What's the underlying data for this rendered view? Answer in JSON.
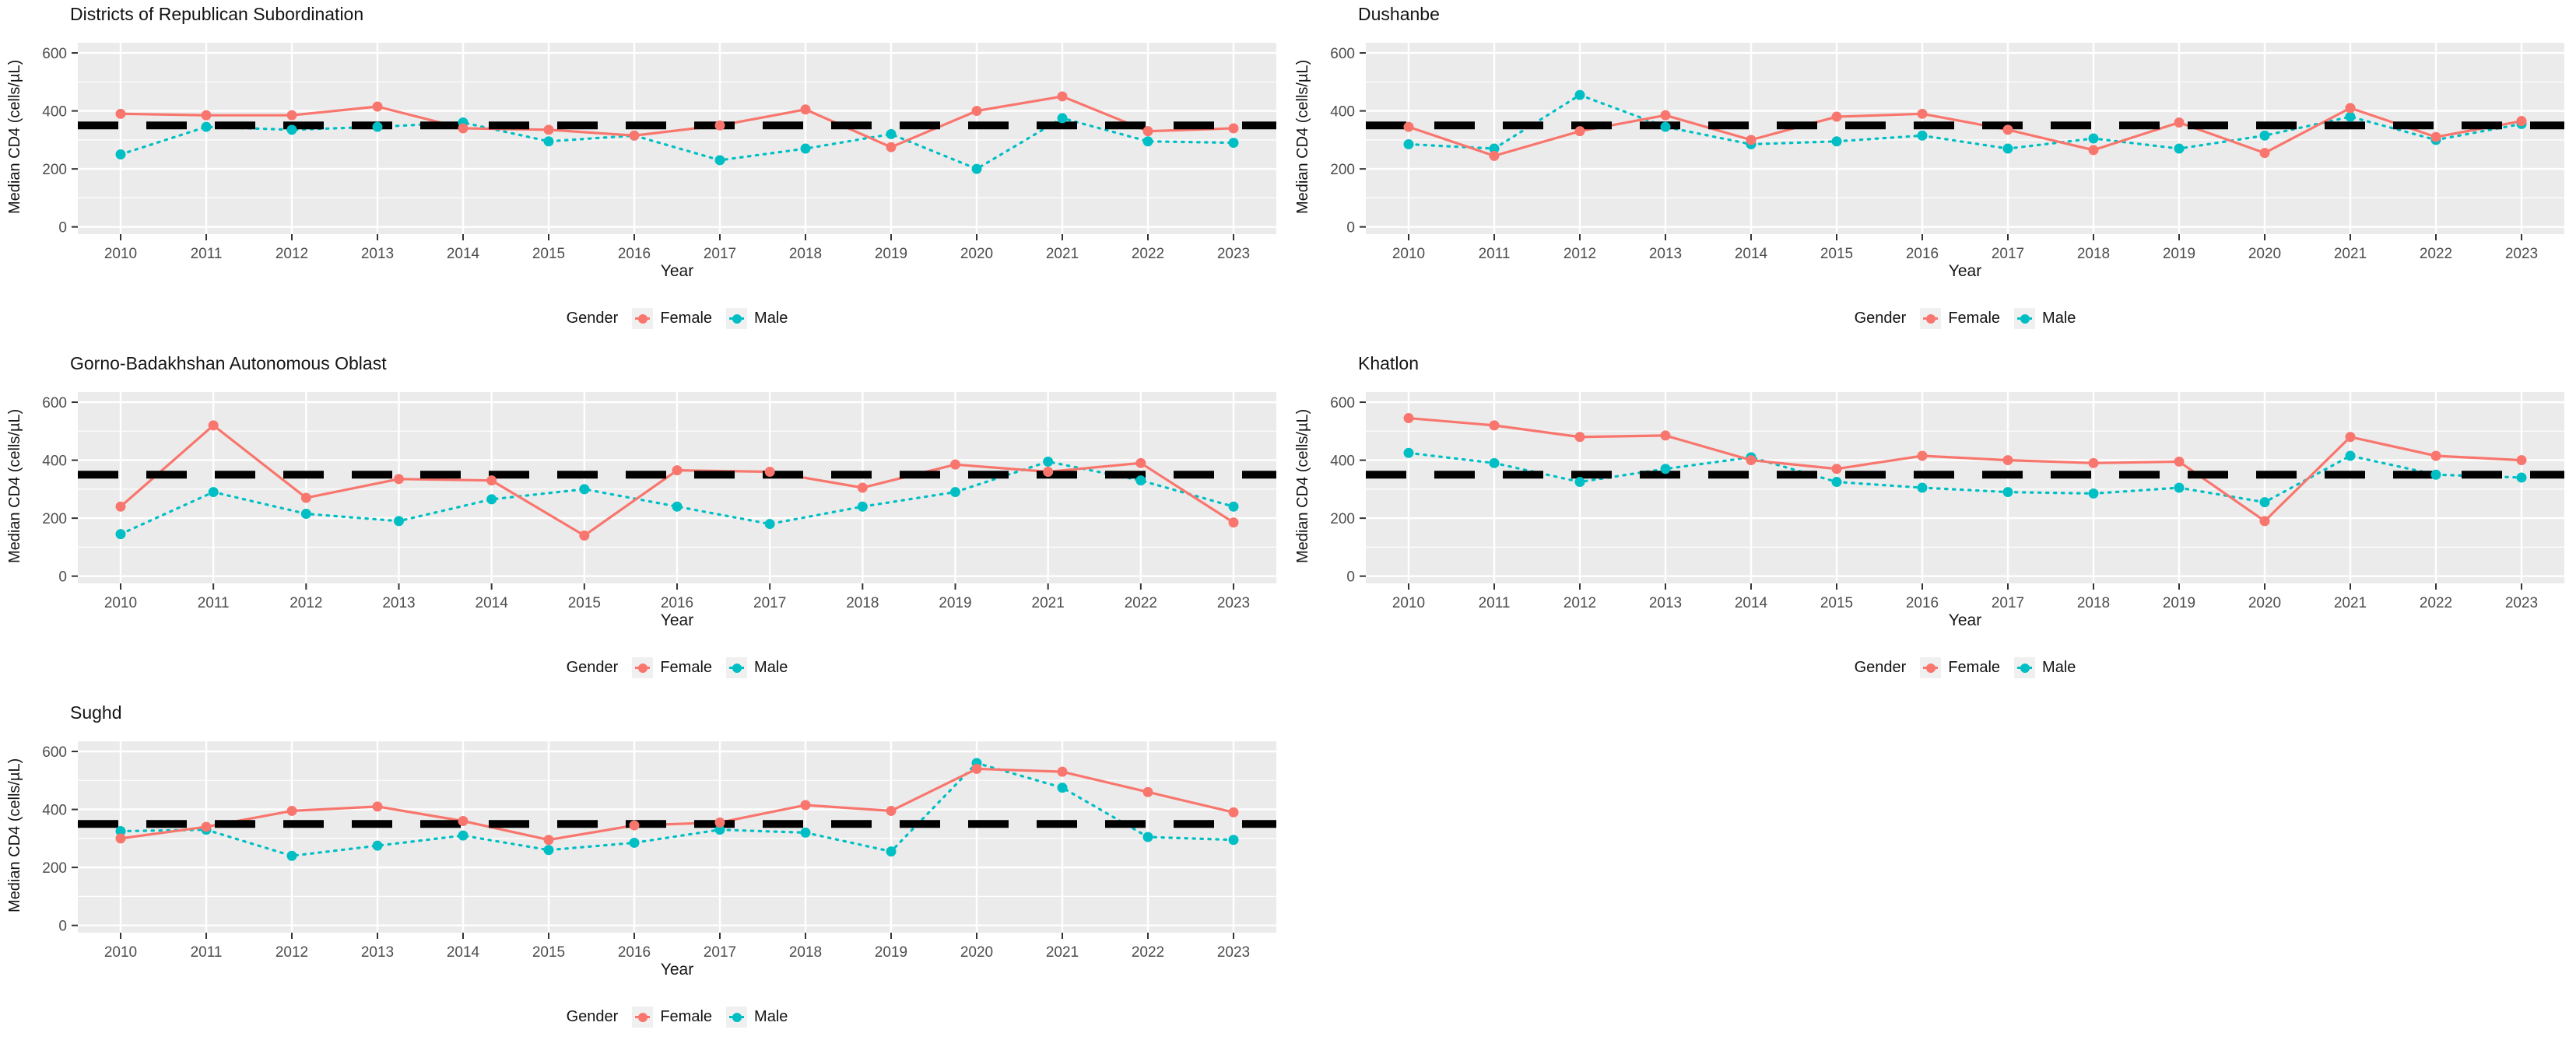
{
  "page": {
    "background": "#ffffff"
  },
  "colors": {
    "female": "#F8766D",
    "male": "#00BFC4",
    "panel_bg": "#EBEBEB",
    "grid": "#FFFFFF",
    "ref_line": "#000000",
    "tick_text": "#4D4D4D",
    "title_text": "#141414",
    "legend_key_bg": "#F0F0F0"
  },
  "axes": {
    "y_label": "Median CD4 (cells/µL)",
    "x_label": "Year",
    "y_ticks": [
      0,
      200,
      400,
      600
    ],
    "y_minor_gridlines": [
      100,
      300,
      500
    ],
    "y_range": [
      -25,
      635
    ]
  },
  "legend": {
    "title": "Gender",
    "items": [
      {
        "label": "Female",
        "color": "#F8766D"
      },
      {
        "label": "Male",
        "color": "#00BFC4"
      }
    ]
  },
  "reference_line": {
    "value": 350,
    "style": "dashed",
    "color": "#000000"
  },
  "chart_data": [
    {
      "type": "line",
      "title": "Districts of Republican Subordination",
      "xlabel": "Year",
      "ylabel": "Median CD4 (cells/µL)",
      "ylim": [
        0,
        600
      ],
      "ref_line": 350,
      "legend_position": "bottom",
      "x": [
        2010,
        2011,
        2012,
        2013,
        2014,
        2015,
        2016,
        2017,
        2018,
        2019,
        2020,
        2021,
        2022,
        2023
      ],
      "series": [
        {
          "name": "Female",
          "color": "#F8766D",
          "linetype": "solid",
          "values": [
            390,
            385,
            385,
            415,
            340,
            335,
            315,
            350,
            405,
            275,
            400,
            450,
            330,
            340
          ]
        },
        {
          "name": "Male",
          "color": "#00BFC4",
          "linetype": "dotted",
          "values": [
            250,
            345,
            335,
            345,
            360,
            295,
            315,
            230,
            270,
            320,
            200,
            375,
            295,
            290
          ]
        }
      ]
    },
    {
      "type": "line",
      "title": "Dushanbe",
      "xlabel": "Year",
      "ylabel": "Median CD4 (cells/µL)",
      "ylim": [
        0,
        600
      ],
      "ref_line": 350,
      "legend_position": "bottom",
      "x": [
        2010,
        2011,
        2012,
        2013,
        2014,
        2015,
        2016,
        2017,
        2018,
        2019,
        2020,
        2021,
        2022,
        2023
      ],
      "series": [
        {
          "name": "Female",
          "color": "#F8766D",
          "linetype": "solid",
          "values": [
            345,
            245,
            330,
            385,
            300,
            380,
            390,
            335,
            265,
            360,
            255,
            410,
            310,
            365
          ]
        },
        {
          "name": "Male",
          "color": "#00BFC4",
          "linetype": "dotted",
          "values": [
            285,
            270,
            455,
            345,
            285,
            295,
            315,
            270,
            305,
            270,
            315,
            380,
            300,
            355
          ]
        }
      ]
    },
    {
      "type": "line",
      "title": "Gorno-Badakhshan Autonomous Oblast",
      "xlabel": "Year",
      "ylabel": "Median CD4 (cells/µL)",
      "ylim": [
        0,
        600
      ],
      "ref_line": 350,
      "legend_position": "bottom",
      "x": [
        2010,
        2011,
        2012,
        2013,
        2014,
        2015,
        2016,
        2017,
        2018,
        2019,
        2021,
        2022,
        2023
      ],
      "series": [
        {
          "name": "Female",
          "color": "#F8766D",
          "linetype": "solid",
          "values": [
            240,
            520,
            270,
            335,
            330,
            140,
            365,
            360,
            305,
            385,
            360,
            390,
            185
          ]
        },
        {
          "name": "Male",
          "color": "#00BFC4",
          "linetype": "dotted",
          "values": [
            145,
            290,
            215,
            190,
            265,
            300,
            240,
            180,
            240,
            290,
            395,
            330,
            240
          ]
        }
      ]
    },
    {
      "type": "line",
      "title": "Khatlon",
      "xlabel": "Year",
      "ylabel": "Median CD4 (cells/µL)",
      "ylim": [
        0,
        600
      ],
      "ref_line": 350,
      "legend_position": "bottom",
      "x": [
        2010,
        2011,
        2012,
        2013,
        2014,
        2015,
        2016,
        2017,
        2018,
        2019,
        2020,
        2021,
        2022,
        2023
      ],
      "series": [
        {
          "name": "Female",
          "color": "#F8766D",
          "linetype": "solid",
          "values": [
            545,
            520,
            480,
            485,
            400,
            370,
            415,
            400,
            390,
            395,
            190,
            480,
            415,
            400
          ]
        },
        {
          "name": "Male",
          "color": "#00BFC4",
          "linetype": "dotted",
          "values": [
            425,
            390,
            325,
            370,
            410,
            325,
            305,
            290,
            285,
            305,
            255,
            415,
            350,
            340
          ]
        }
      ]
    },
    {
      "type": "line",
      "title": "Sughd",
      "xlabel": "Year",
      "ylabel": "Median CD4 (cells/µL)",
      "ylim": [
        0,
        600
      ],
      "ref_line": 350,
      "legend_position": "bottom",
      "x": [
        2010,
        2011,
        2012,
        2013,
        2014,
        2015,
        2016,
        2017,
        2018,
        2019,
        2020,
        2021,
        2022,
        2023
      ],
      "series": [
        {
          "name": "Female",
          "color": "#F8766D",
          "linetype": "solid",
          "values": [
            300,
            340,
            395,
            410,
            360,
            295,
            345,
            355,
            415,
            395,
            540,
            530,
            460,
            390
          ]
        },
        {
          "name": "Male",
          "color": "#00BFC4",
          "linetype": "dotted",
          "values": [
            325,
            330,
            240,
            275,
            310,
            260,
            285,
            330,
            320,
            255,
            560,
            475,
            305,
            295
          ]
        }
      ]
    }
  ]
}
